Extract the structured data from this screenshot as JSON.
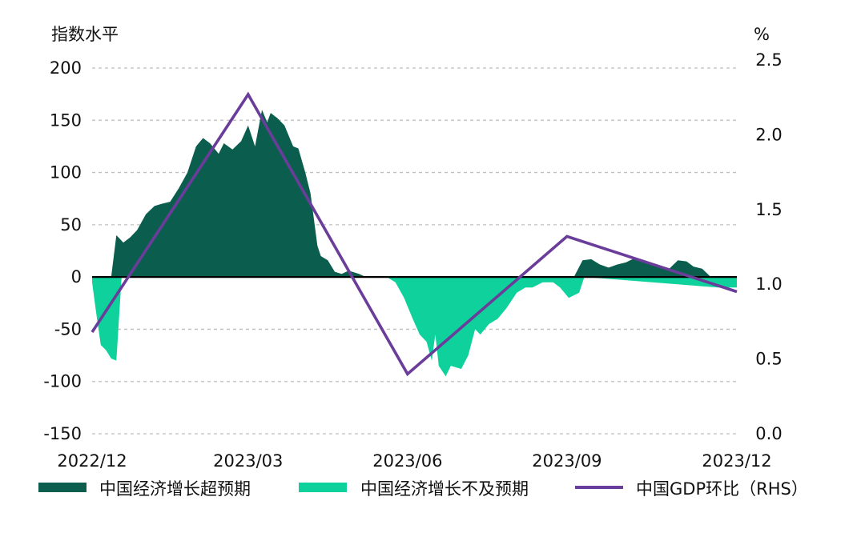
{
  "chart_data": {
    "type": "area",
    "left_axis_unit": "指数水平",
    "right_axis_unit": "%",
    "left_ylim": [
      -150,
      200
    ],
    "left_yticks": [
      "200",
      "150",
      "100",
      "50",
      "0",
      "-50",
      "-100",
      "-150"
    ],
    "right_ylim": [
      0.0,
      2.5
    ],
    "right_yticks": [
      "2.5",
      "2.0",
      "1.5",
      "1.0",
      "0.5",
      "0.0"
    ],
    "xlim": [
      "2022-12-01",
      "2023-12-08"
    ],
    "xticks": [
      "2022/12",
      "2023/03",
      "2023/06",
      "2023/09",
      "2023/12"
    ],
    "grid": "horizontal-dashed",
    "legend_position": "bottom",
    "colors": {
      "surprise": "#0b5e4d",
      "miss": "#0fd19c",
      "gdp": "#6a3d9a",
      "zero_line": "#000000",
      "grid": "#bfbfbf"
    },
    "series": [
      {
        "name": "中国经济增长超预期",
        "kind": "area",
        "x": [
          "2022-12-01",
          "2022-12-08",
          "2022-12-12",
          "2022-12-15",
          "2022-12-19",
          "2022-12-23",
          "2022-12-27",
          "2023-01-01",
          "2023-01-06",
          "2023-01-10",
          "2023-01-15",
          "2023-01-20",
          "2023-01-25",
          "2023-01-30",
          "2023-02-03",
          "2023-02-07",
          "2023-02-12",
          "2023-02-15",
          "2023-02-20",
          "2023-02-25",
          "2023-03-01",
          "2023-03-05",
          "2023-03-09",
          "2023-03-12",
          "2023-03-14",
          "2023-03-18",
          "2023-03-22",
          "2023-03-27",
          "2023-03-30",
          "2023-04-03",
          "2023-04-06",
          "2023-04-10",
          "2023-04-12",
          "2023-04-16",
          "2023-04-20",
          "2023-04-24",
          "2023-04-28",
          "2023-05-04",
          "2023-05-08",
          "2023-05-12",
          "2023-05-15",
          "2023-05-19",
          "2023-05-22",
          "2023-05-25",
          "2023-05-28",
          "2023-06-01",
          "2023-09-03",
          "2023-09-05",
          "2023-09-10",
          "2023-09-15",
          "2023-09-20",
          "2023-09-25",
          "2023-09-30",
          "2023-10-05",
          "2023-10-10",
          "2023-10-15",
          "2023-10-20",
          "2023-10-25",
          "2023-10-30",
          "2023-11-04",
          "2023-11-09",
          "2023-11-13",
          "2023-11-18",
          "2023-11-23",
          "2023-11-27",
          "2023-11-30",
          "2023-12-08"
        ],
        "values": [
          0,
          0,
          0,
          40,
          33,
          38,
          45,
          60,
          68,
          70,
          72,
          85,
          100,
          125,
          133,
          128,
          118,
          128,
          122,
          130,
          145,
          125,
          160,
          148,
          157,
          152,
          145,
          125,
          123,
          100,
          80,
          30,
          20,
          16,
          5,
          3,
          6,
          3,
          0,
          0,
          0,
          0,
          0,
          0,
          0,
          0,
          0,
          0,
          16,
          17,
          12,
          9,
          12,
          14,
          18,
          16,
          13,
          10,
          8,
          16,
          15,
          10,
          8,
          0,
          0,
          0,
          0
        ]
      },
      {
        "name": "中国经济增长不及预期",
        "kind": "area",
        "x": [
          "2022-12-01",
          "2022-12-03",
          "2022-12-06",
          "2022-12-09",
          "2022-12-12",
          "2022-12-15",
          "2022-12-18",
          "2023-05-20",
          "2023-05-25",
          "2023-05-30",
          "2023-06-04",
          "2023-06-08",
          "2023-06-12",
          "2023-06-15",
          "2023-06-17",
          "2023-06-19",
          "2023-06-23",
          "2023-06-26",
          "2023-07-02",
          "2023-07-06",
          "2023-07-10",
          "2023-07-13",
          "2023-07-18",
          "2023-07-23",
          "2023-07-28",
          "2023-08-03",
          "2023-08-08",
          "2023-08-12",
          "2023-08-18",
          "2023-08-24",
          "2023-08-28",
          "2023-09-02",
          "2023-09-08",
          "2023-09-11",
          "2023-11-27",
          "2023-11-30",
          "2023-12-08"
        ],
        "values": [
          -5,
          -30,
          -65,
          -70,
          -78,
          -80,
          0,
          0,
          -5,
          -20,
          -40,
          -55,
          -62,
          -80,
          -55,
          -85,
          -95,
          -85,
          -88,
          -75,
          -50,
          -55,
          -45,
          -40,
          -30,
          -15,
          -10,
          -10,
          -5,
          -5,
          -10,
          -20,
          -15,
          0,
          -10,
          -10,
          -10
        ]
      },
      {
        "name": "中国GDP环比（RHS）",
        "kind": "line",
        "axis": "right",
        "x": [
          "2022-12-01",
          "2023-03-01",
          "2023-06-01",
          "2023-09-01",
          "2023-12-08"
        ],
        "values": [
          0.68,
          2.27,
          0.4,
          1.32,
          0.95
        ]
      }
    ]
  }
}
